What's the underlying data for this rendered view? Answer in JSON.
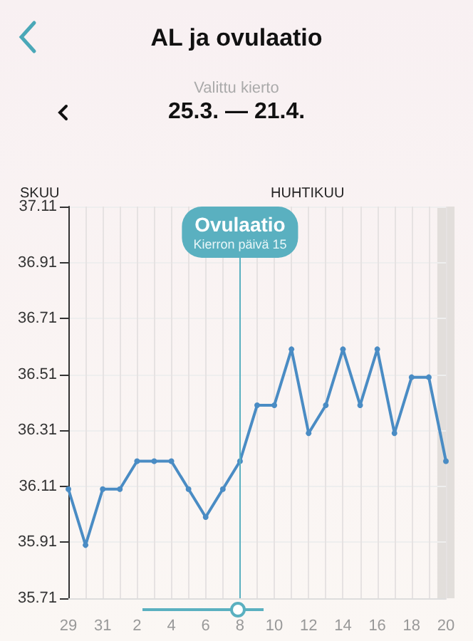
{
  "chart_data": {
    "type": "line",
    "title": "AL ja ovulaatio",
    "subtitle": "Valittu kierto",
    "annotations": [
      "25.3. — 21.4.",
      "SKUU",
      "HUHTIKUU",
      {
        "text": "Kierron päivä 15",
        "x": "8"
      }
    ],
    "categories": [
      "29",
      null,
      "31",
      null,
      "2",
      null,
      "4",
      null,
      "6",
      null,
      "8",
      null,
      "10",
      null,
      "12",
      null,
      "14",
      null,
      "16",
      null,
      "18",
      null,
      "20"
    ],
    "series": [
      {
        "color": "#4a8cc4",
        "values": [
          36.1,
          35.9,
          36.1,
          36.1,
          36.2,
          36.2,
          36.2,
          36.1,
          36.0,
          36.1,
          36.2,
          36.4,
          36.4,
          36.6,
          36.3,
          36.4,
          36.6,
          36.4,
          36.6,
          36.3,
          36.5,
          36.5,
          36.2
        ]
      }
    ],
    "ylim": [
      35.71,
      37.11
    ],
    "yticks": [
      35.71,
      35.91,
      36.11,
      36.31,
      36.51,
      36.71,
      36.91,
      37.11
    ],
    "ref_lines": [
      {
        "axis": "x",
        "value": "8",
        "label": "Ovulaatio",
        "color": "#5ab0c0"
      }
    ],
    "bands": [
      {
        "axis": "x",
        "from": "20",
        "to": "20",
        "color": "#dcd8d4"
      }
    ],
    "grid": true,
    "marker": "circle",
    "line_style": "solid"
  }
}
